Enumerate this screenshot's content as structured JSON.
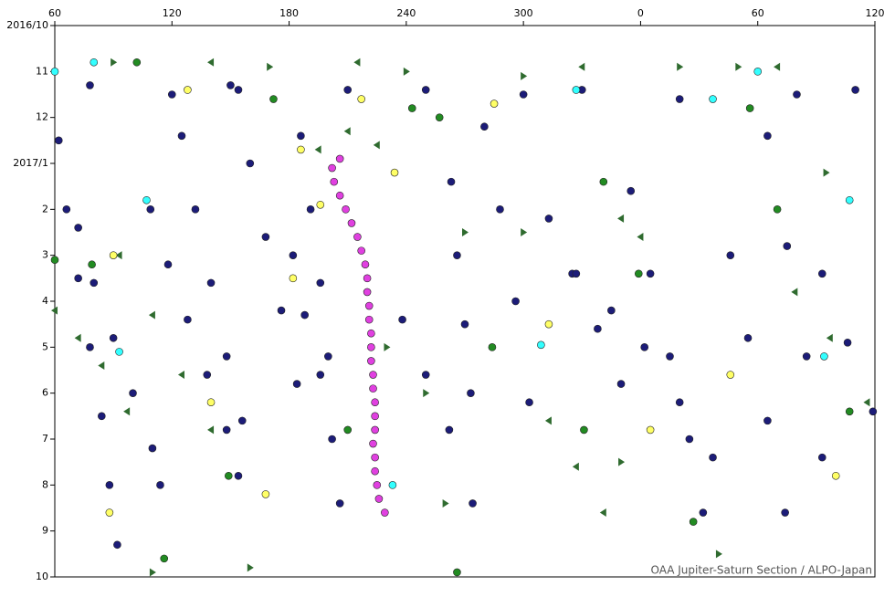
{
  "chart_data": {
    "type": "scatter",
    "annotation": "OAA Jupiter-Saturn Section / ALPO-Japan",
    "xlim": [
      60,
      480
    ],
    "xticks": [
      60,
      120,
      180,
      240,
      300,
      {
        "value": 360,
        "label": "0"
      },
      {
        "value": 420,
        "label": "60"
      },
      {
        "value": 480,
        "label": "120"
      }
    ],
    "ylim": [
      12,
      0
    ],
    "yticks": [
      {
        "value": 0,
        "label": "2016/10"
      },
      {
        "value": 1,
        "label": "11"
      },
      {
        "value": 2,
        "label": "12"
      },
      {
        "value": 3,
        "label": "2017/1"
      },
      {
        "value": 4,
        "label": "2"
      },
      {
        "value": 5,
        "label": "3"
      },
      {
        "value": 6,
        "label": "4"
      },
      {
        "value": 7,
        "label": "5"
      },
      {
        "value": 8,
        "label": "6"
      },
      {
        "value": 9,
        "label": "7"
      },
      {
        "value": 10,
        "label": "8"
      },
      {
        "value": 11,
        "label": "9"
      },
      {
        "value": 12,
        "label": "10"
      }
    ],
    "grid": false,
    "series": [
      {
        "color": "#1c1c78",
        "marker": "circle",
        "x": [
          62,
          66,
          72,
          78,
          84,
          88,
          92,
          72,
          80,
          90,
          100,
          110,
          114,
          109,
          118,
          128,
          138,
          148,
          154,
          125,
          132,
          140,
          148,
          156,
          154,
          160,
          168,
          176,
          184,
          182,
          188,
          196,
          202,
          206,
          186,
          191,
          196,
          200,
          238,
          250,
          262,
          274,
          263,
          266,
          270,
          273,
          280,
          288,
          296,
          303,
          313,
          325,
          338,
          350,
          327,
          345,
          362,
          380,
          397,
          355,
          365,
          375,
          385,
          392,
          406,
          415,
          425,
          434,
          425,
          435,
          445,
          453,
          453,
          466,
          479,
          78,
          120,
          150,
          210,
          250,
          300,
          330,
          380,
          440,
          470
        ],
        "y": [
          2.5,
          4,
          5.5,
          7,
          8.5,
          10,
          11.3,
          4.4,
          5.6,
          6.8,
          8,
          9.2,
          10,
          4,
          5.2,
          6.4,
          7.6,
          8.8,
          9.8,
          2.4,
          4,
          5.6,
          7.2,
          8.6,
          1.4,
          3,
          4.6,
          6.2,
          7.8,
          5,
          6.3,
          7.6,
          9,
          10.4,
          2.4,
          4,
          5.6,
          7.2,
          6.4,
          7.6,
          8.8,
          10.4,
          3.4,
          5,
          6.5,
          8,
          2.2,
          4,
          6,
          8.2,
          4.2,
          5.4,
          6.6,
          7.8,
          5.4,
          6.2,
          7,
          8.2,
          9.4,
          3.6,
          5.4,
          7.2,
          9,
          10.6,
          5,
          6.8,
          8.6,
          10.6,
          2.4,
          4.8,
          7.2,
          9.4,
          5.4,
          6.9,
          8.4,
          1.3,
          1.5,
          1.3,
          1.4,
          1.4,
          1.5,
          1.4,
          1.6,
          1.5,
          1.4
        ]
      },
      {
        "color": "#228b22",
        "marker": "circle",
        "x": [
          102,
          172,
          257,
          341,
          430,
          79,
          284,
          359,
          149,
          331,
          467,
          210,
          387,
          116,
          266,
          416,
          60,
          243
        ],
        "y": [
          0.8,
          1.6,
          2,
          3.4,
          4,
          5.2,
          7,
          5.4,
          9.8,
          8.8,
          8.4,
          8.8,
          10.8,
          11.6,
          11.9,
          1.8,
          5.1,
          1.8
        ]
      },
      {
        "color": "#2f6b2f",
        "marker": "triangle-left",
        "x": [
          60,
          72,
          84,
          97,
          93,
          110,
          125,
          140,
          195,
          210,
          225,
          350,
          360,
          313,
          327,
          341,
          439,
          457,
          476,
          140,
          215,
          330,
          430
        ],
        "y": [
          6.2,
          6.8,
          7.4,
          8.4,
          5,
          6.3,
          7.6,
          8.8,
          2.7,
          2.3,
          2.6,
          4.2,
          4.6,
          8.6,
          9.6,
          10.6,
          5.8,
          6.8,
          8.2,
          0.8,
          0.8,
          0.9,
          0.9
        ]
      },
      {
        "color": "#2f6b2f",
        "marker": "triangle-right",
        "x": [
          90,
          170,
          240,
          300,
          380,
          410,
          270,
          300,
          230,
          250,
          350,
          400,
          160,
          110,
          455,
          260
        ],
        "y": [
          0.8,
          0.9,
          1,
          1.1,
          0.9,
          0.9,
          4.5,
          4.5,
          7,
          8,
          9.5,
          11.5,
          11.8,
          11.9,
          3.2,
          10.4
        ]
      },
      {
        "color": "#ffff66",
        "marker": "circle",
        "x": [
          128,
          217,
          285,
          186,
          234,
          196,
          90,
          182,
          313,
          365,
          460,
          168,
          88,
          406,
          140
        ],
        "y": [
          1.4,
          1.6,
          1.7,
          2.7,
          3.2,
          3.9,
          5,
          5.5,
          6.5,
          8.8,
          9.8,
          10.2,
          10.6,
          7.6,
          8.2
        ]
      },
      {
        "color": "#33ffff",
        "marker": "circle",
        "x": [
          60,
          80,
          309,
          233,
          420,
          397,
          454,
          467,
          327,
          107,
          93
        ],
        "y": [
          1,
          0.8,
          6.95,
          10,
          1,
          1.6,
          7.2,
          3.8,
          1.4,
          3.8,
          7.1
        ]
      },
      {
        "color": "#e040e0",
        "marker": "circle",
        "x": [
          206,
          202,
          203,
          206,
          209,
          212,
          215,
          217,
          219,
          220,
          220,
          221,
          221,
          222,
          222,
          222,
          223,
          223,
          224,
          224,
          224,
          223,
          224,
          224,
          225,
          226,
          229
        ],
        "y": [
          2.9,
          3.1,
          3.4,
          3.7,
          4,
          4.3,
          4.6,
          4.9,
          5.2,
          5.5,
          5.8,
          6.1,
          6.4,
          6.7,
          7,
          7.3,
          7.6,
          7.9,
          8.2,
          8.5,
          8.8,
          9.1,
          9.4,
          9.7,
          10,
          10.3,
          10.6
        ]
      }
    ]
  }
}
